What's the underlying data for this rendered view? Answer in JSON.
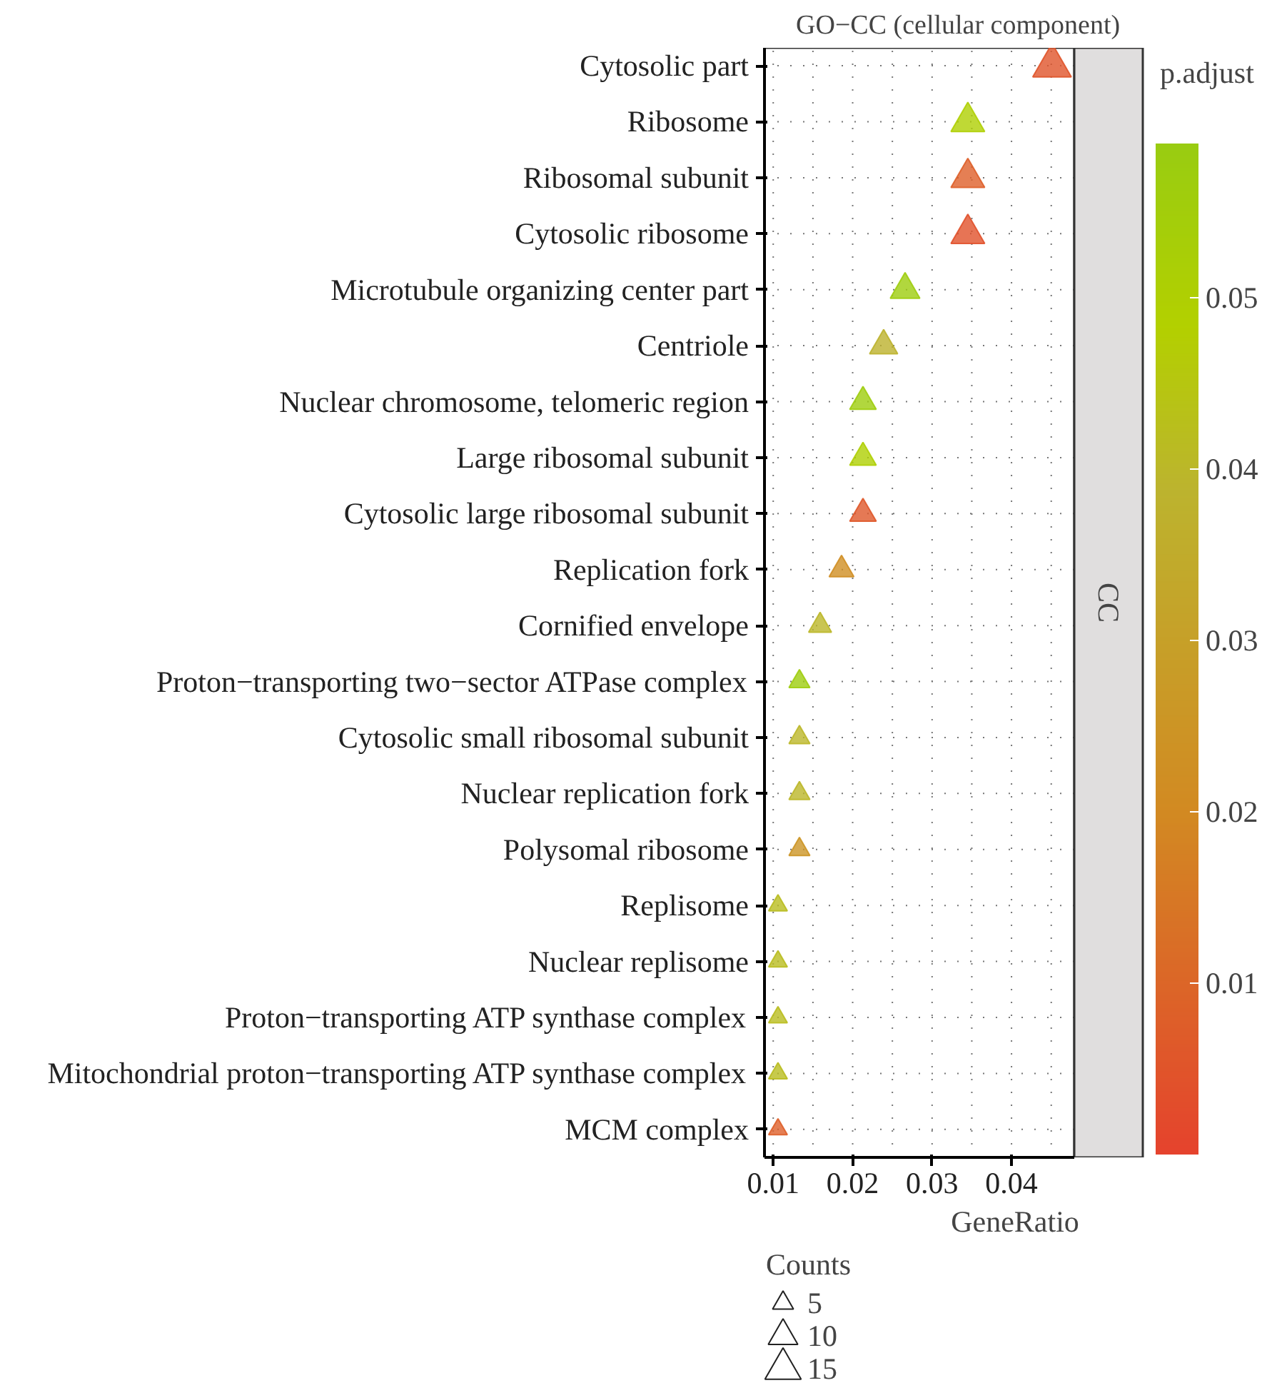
{
  "chart_data": {
    "type": "scatter",
    "title": "GO−CC (cellular component)",
    "xlabel": "GeneRatio",
    "clabel": "p.adjust",
    "legend_title": "Counts",
    "categories": [
      "Cytosolic part",
      "Ribosome",
      "Ribosomal subunit",
      "Cytosolic ribosome",
      "Microtubule organizing center part",
      "Centriole",
      "Nuclear chromosome, telomeric region",
      "Large ribosomal subunit",
      "Cytosolic large ribosomal subunit",
      "Replication fork",
      "Cornified envelope",
      "Proton−transporting two−sector ATPase complex",
      "Cytosolic small ribosomal subunit",
      "Nuclear replication fork",
      "Polysomal ribosome",
      "Replisome",
      "Nuclear replisome",
      "Proton−transporting ATP synthase complex",
      "Mitochondrial proton−transporting ATP synthase complex",
      "MCM complex"
    ],
    "values": [
      0.0451,
      0.0345,
      0.0345,
      0.0345,
      0.0266,
      0.0239,
      0.0213,
      0.0213,
      0.0213,
      0.0186,
      0.0159,
      0.0133,
      0.0133,
      0.0133,
      0.0133,
      0.0106,
      0.0106,
      0.0106,
      0.0106,
      0.0106
    ],
    "sizes": [
      17,
      13,
      13,
      13,
      10,
      9,
      8,
      8,
      8,
      7,
      6,
      5,
      5,
      5,
      5,
      4,
      4,
      4,
      4,
      4
    ],
    "size_legend": [
      5,
      10,
      15
    ],
    "cvalues": [
      0.005,
      0.05,
      0.008,
      0.004,
      0.057,
      0.038,
      0.057,
      0.05,
      0.006,
      0.022,
      0.04,
      0.057,
      0.04,
      0.04,
      0.025,
      0.042,
      0.042,
      0.042,
      0.042,
      0.008
    ],
    "clim": [
      0,
      0.059
    ],
    "cticks": [
      0.01,
      0.02,
      0.03,
      0.04,
      0.05
    ],
    "orientation": "horizontal",
    "xlim": [
      0.0089,
      0.0479
    ],
    "xticks": [
      0.01,
      0.02,
      0.03,
      0.04
    ],
    "marker": "triangle",
    "grid": true,
    "annotations": [
      "CC"
    ]
  }
}
